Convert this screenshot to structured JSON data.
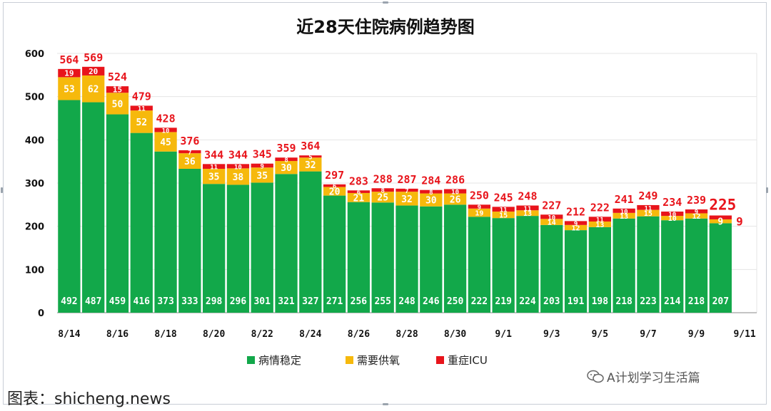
{
  "chart_data": {
    "type": "bar",
    "stacked": true,
    "title": "近28天住院病例趋势图",
    "categories": [
      "8/14",
      "8/15",
      "8/16",
      "8/17",
      "8/18",
      "8/19",
      "8/20",
      "8/21",
      "8/22",
      "8/23",
      "8/24",
      "8/25",
      "8/26",
      "8/27",
      "8/28",
      "8/29",
      "8/30",
      "8/31",
      "9/1",
      "9/2",
      "9/3",
      "9/4",
      "9/5",
      "9/6",
      "9/7",
      "9/8",
      "9/9",
      "9/10"
    ],
    "x_tick_labels": [
      "8/14",
      "8/16",
      "8/18",
      "8/20",
      "8/22",
      "8/24",
      "8/26",
      "8/28",
      "8/30",
      "9/1",
      "9/3",
      "9/5",
      "9/7",
      "9/9",
      "9/11"
    ],
    "series": [
      {
        "name": "病情稳定",
        "color": "#12a84a",
        "values": [
          492,
          487,
          459,
          416,
          373,
          333,
          298,
          296,
          301,
          321,
          327,
          271,
          256,
          255,
          248,
          246,
          250,
          222,
          219,
          224,
          203,
          191,
          198,
          218,
          223,
          214,
          218,
          207
        ]
      },
      {
        "name": "需要供氧",
        "color": "#f6b90c",
        "values": [
          53,
          62,
          50,
          52,
          45,
          36,
          35,
          38,
          35,
          30,
          32,
          20,
          21,
          25,
          32,
          30,
          26,
          19,
          15,
          13,
          14,
          12,
          13,
          13,
          15,
          10,
          12,
          9
        ]
      },
      {
        "name": "重症ICU",
        "color": "#e8141b",
        "values": [
          19,
          20,
          15,
          11,
          10,
          7,
          11,
          10,
          9,
          8,
          5,
          6,
          6,
          8,
          7,
          8,
          10,
          9,
          11,
          11,
          10,
          9,
          11,
          10,
          11,
          10,
          9,
          9
        ]
      }
    ],
    "totals": [
      564,
      569,
      524,
      479,
      428,
      376,
      344,
      344,
      345,
      359,
      364,
      297,
      283,
      288,
      287,
      284,
      286,
      250,
      245,
      248,
      227,
      212,
      222,
      241,
      249,
      234,
      239,
      225
    ],
    "ylim": [
      0,
      600
    ],
    "yticks": [
      0,
      100,
      200,
      300,
      400,
      500,
      600
    ],
    "grid": true,
    "legend_position": "bottom"
  },
  "watermark": "A计划学习生活篇",
  "source": "图表：shicheng.news"
}
